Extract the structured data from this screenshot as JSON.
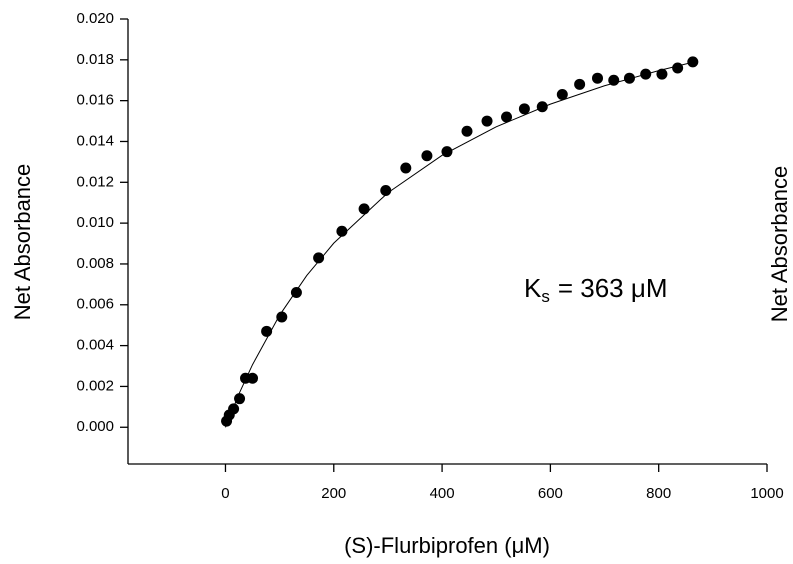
{
  "chart_data": {
    "type": "scatter",
    "x_label": "(S)-Flurbiprofen (μM)",
    "y_label": "Net Absorbance",
    "right_label": "Net Absorbance",
    "annotation": {
      "main": "K",
      "sub": "s",
      "rest": "= 363 μM"
    },
    "xlim": [
      -180,
      1000
    ],
    "xticks": [
      0,
      200,
      400,
      600,
      800,
      1000
    ],
    "ylim": [
      -0.0018,
      0.02
    ],
    "yticks": [
      {
        "value": 0,
        "label": "0.000"
      },
      {
        "value": 0.002,
        "label": "0.002"
      },
      {
        "value": 0.004,
        "label": "0.004"
      },
      {
        "value": 0.006,
        "label": "0.006"
      },
      {
        "value": 0.008,
        "label": "0.008"
      },
      {
        "value": 0.01,
        "label": "0.010"
      },
      {
        "value": 0.012,
        "label": "0.012"
      },
      {
        "value": 0.014,
        "label": "0.014"
      },
      {
        "value": 0.016,
        "label": "0.016"
      },
      {
        "value": 0.018,
        "label": "0.018"
      },
      {
        "value": 0.02,
        "label": "0.020"
      }
    ],
    "color": "#000000",
    "x": [
      2,
      7,
      15,
      26,
      37,
      50,
      76,
      104,
      131,
      172,
      215,
      256,
      296,
      333,
      372,
      409,
      446,
      483,
      519,
      552,
      585,
      622,
      654,
      687,
      717,
      746,
      776,
      806,
      835,
      863
    ],
    "values": [
      0.0003,
      0.0006,
      0.0009,
      0.0014,
      0.0024,
      0.0024,
      0.0047,
      0.0054,
      0.0066,
      0.0083,
      0.0096,
      0.0107,
      0.0116,
      0.0127,
      0.0133,
      0.0135,
      0.0145,
      0.015,
      0.0152,
      0.0156,
      0.0157,
      0.0163,
      0.0168,
      0.0171,
      0.017,
      0.0171,
      0.0173,
      0.0173,
      0.0176,
      0.0179
    ],
    "fit": {
      "x": [
        0,
        25,
        50,
        100,
        150,
        200,
        300,
        400,
        500,
        600,
        700,
        800,
        863
      ],
      "values": [
        0,
        0.00164,
        0.00307,
        0.00549,
        0.00743,
        0.00902,
        0.01149,
        0.01332,
        0.01472,
        0.01583,
        0.01673,
        0.01747,
        0.01788
      ]
    }
  }
}
